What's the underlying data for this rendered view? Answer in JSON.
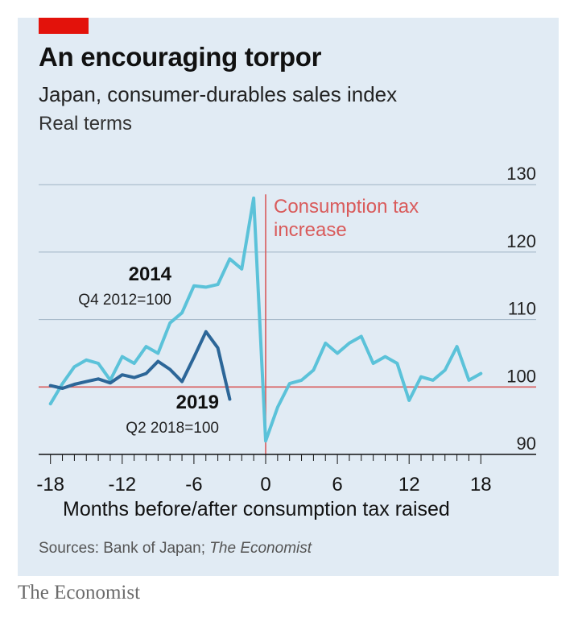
{
  "header": {
    "title": "An encouraging torpor",
    "subtitle": "Japan, consumer-durables sales index",
    "subsubtitle": "Real terms"
  },
  "footer": {
    "source_prefix": "Sources: Bank of Japan; ",
    "source_italic": "The Economist",
    "brand": "The Economist"
  },
  "colors": {
    "panel_bg": "#e1ebf4",
    "brand_red": "#e3120b",
    "series_2014": "#5bc2d9",
    "series_2019": "#2c6698",
    "reference_line": "#d95b5b",
    "grid": "#9fb3c4"
  },
  "chart_data": {
    "type": "line",
    "xlabel": "Months before/after consumption tax raised",
    "ylabel": "",
    "xlim": [
      -19,
      20
    ],
    "ylim": [
      90,
      130
    ],
    "x_ticks": [
      -18,
      -12,
      -6,
      0,
      6,
      12,
      18
    ],
    "x_tick_labels": [
      "-18",
      "-12",
      "-6",
      "0",
      "6",
      "12",
      "18"
    ],
    "y_ticks": [
      90,
      100,
      110,
      120,
      130
    ],
    "y_tick_labels": [
      "90",
      "100",
      "110",
      "120",
      "130"
    ],
    "baseline": 100,
    "grid": true,
    "annotations": {
      "event": {
        "x": 0,
        "line1": "Consumption tax",
        "line2": "increase"
      },
      "series_2014": {
        "name": "2014",
        "base": "Q4 2012=100"
      },
      "series_2019": {
        "name": "2019",
        "base": "Q2 2018=100"
      }
    },
    "series": [
      {
        "name": "2014",
        "x": [
          -18,
          -17,
          -16,
          -15,
          -14,
          -13,
          -12,
          -11,
          -10,
          -9,
          -8,
          -7,
          -6,
          -5,
          -4,
          -3,
          -2,
          -1,
          0,
          1,
          2,
          3,
          4,
          5,
          6,
          7,
          8,
          9,
          10,
          11,
          12,
          13,
          14,
          15,
          16,
          17,
          18
        ],
        "values": [
          97.5,
          100.5,
          103,
          104,
          103.5,
          101,
          104.5,
          103.5,
          106,
          105,
          109.5,
          111,
          115,
          114.8,
          115.2,
          119,
          117.5,
          128,
          92,
          97,
          100.5,
          101,
          102.5,
          106.5,
          105,
          106.5,
          107.5,
          103.5,
          104.5,
          103.5,
          98,
          101.5,
          101,
          102.5,
          106,
          101,
          102
        ]
      },
      {
        "name": "2019",
        "x": [
          -18,
          -17,
          -16,
          -15,
          -14,
          -13,
          -12,
          -11,
          -10,
          -9,
          -8,
          -7,
          -6,
          -5,
          -4,
          -3
        ],
        "values": [
          100.2,
          99.8,
          100.4,
          100.8,
          101.2,
          100.6,
          101.8,
          101.4,
          102,
          103.8,
          102.6,
          100.8,
          104.4,
          108.2,
          105.8,
          98.2
        ]
      }
    ]
  }
}
